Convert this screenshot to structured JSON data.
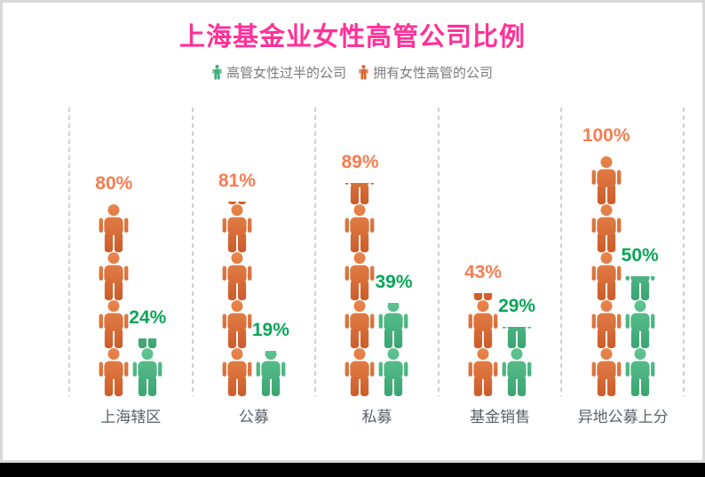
{
  "window": {
    "card_background": "#ffffff",
    "card_border_color": "#d8d8d8",
    "bottom_band_color": "#000000"
  },
  "title": {
    "text": "上海基金业女性高管公司比例",
    "color": "#ff3198"
  },
  "legend": [
    {
      "label": "高管女性过半的公司",
      "icon": "person-icon",
      "color": "#3fae7c"
    },
    {
      "label": "拥有女性高管的公司",
      "icon": "person-icon",
      "color": "#d96a33"
    }
  ],
  "chart_data": {
    "type": "bar",
    "subtype": "pictogram-people-stack",
    "categories": [
      "上海辖区",
      "公募",
      "私募",
      "基金销售",
      "异地公募上分"
    ],
    "series": [
      {
        "name": "拥有女性高管的公司",
        "values": [
          80,
          81,
          89,
          43,
          100
        ],
        "color_top": "#e8864d",
        "color_bottom": "#cc5c2a",
        "label_color": "#f97c50"
      },
      {
        "name": "高管女性过半的公司",
        "values": [
          24,
          19,
          39,
          29,
          50
        ],
        "color_top": "#5fc491",
        "color_bottom": "#3ba473",
        "label_color": "#0aa558"
      }
    ],
    "value_suffix": "%",
    "unit_per_icon": 20,
    "icons_per_full_bar": 5,
    "ylim": [
      0,
      100
    ],
    "separator_color": "#cfcfcf",
    "separator_style": "dashed",
    "category_label_color": "#57606a",
    "legend_position": "top-center"
  }
}
